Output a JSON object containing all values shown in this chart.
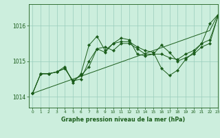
{
  "title": "Graphe pression niveau de la mer (hPa)",
  "background_color": "#cceedd",
  "grid_color": "#99ccbb",
  "line_color": "#1a5c1a",
  "xlim": [
    -0.5,
    23
  ],
  "ylim": [
    1013.7,
    1016.6
  ],
  "yticks": [
    1014,
    1015,
    1016
  ],
  "xticks": [
    0,
    1,
    2,
    3,
    4,
    5,
    6,
    7,
    8,
    9,
    10,
    11,
    12,
    13,
    14,
    15,
    16,
    17,
    18,
    19,
    20,
    21,
    22,
    23
  ],
  "series1": [
    1014.1,
    1014.65,
    1014.65,
    1014.7,
    1014.85,
    1014.4,
    1014.65,
    1015.45,
    1015.7,
    1015.3,
    1015.5,
    1015.65,
    1015.6,
    1015.2,
    1015.15,
    1015.2,
    1015.2,
    1015.1,
    1015.05,
    1015.2,
    1015.3,
    1015.5,
    1016.05,
    1016.3
  ],
  "series2": [
    1014.1,
    1014.65,
    1014.65,
    1014.7,
    1014.8,
    1014.45,
    1014.6,
    1014.85,
    1015.35,
    1015.25,
    1015.5,
    1015.55,
    1015.55,
    1015.4,
    1015.3,
    1015.25,
    1014.8,
    1014.6,
    1014.75,
    1015.05,
    1015.25,
    1015.5,
    1015.6,
    1016.25
  ],
  "series3": [
    1014.1,
    1014.65,
    1014.65,
    1014.7,
    1014.8,
    1014.45,
    1014.5,
    1015.0,
    1015.35,
    1015.4,
    1015.3,
    1015.5,
    1015.5,
    1015.35,
    1015.2,
    1015.2,
    1015.45,
    1015.25,
    1015.0,
    1015.1,
    1015.2,
    1015.4,
    1015.5,
    1016.25
  ],
  "series_straight": [
    1014.1,
    1014.18,
    1014.26,
    1014.34,
    1014.42,
    1014.5,
    1014.58,
    1014.66,
    1014.74,
    1014.82,
    1014.9,
    1014.98,
    1015.06,
    1015.14,
    1015.22,
    1015.3,
    1015.38,
    1015.46,
    1015.54,
    1015.62,
    1015.7,
    1015.78,
    1015.86,
    1016.3
  ]
}
